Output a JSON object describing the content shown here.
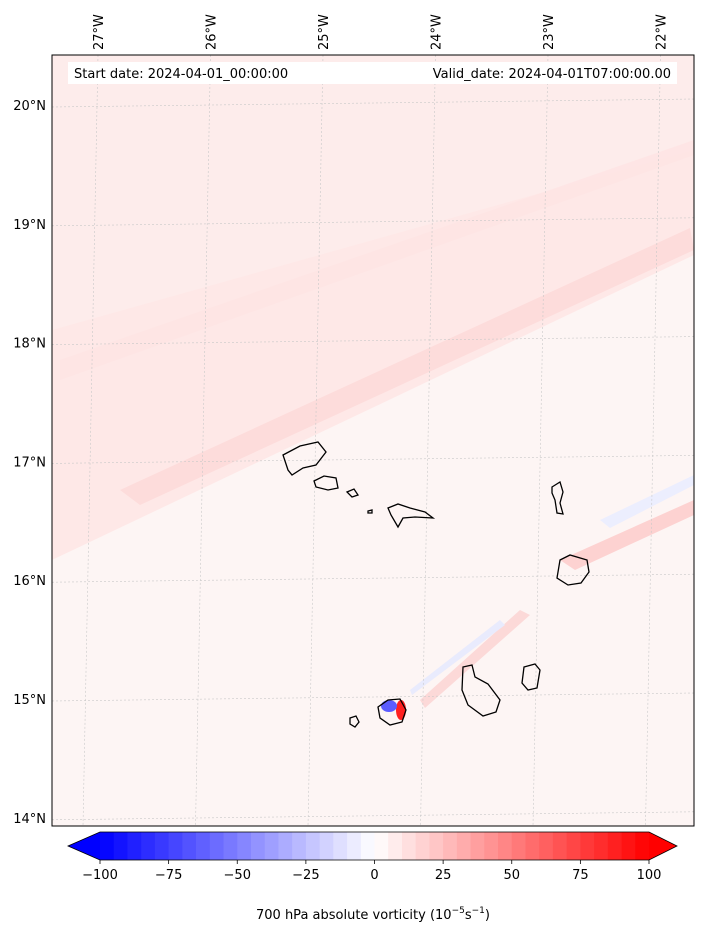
{
  "map": {
    "start_label": "Start date: 2024-04-01_00:00:00",
    "valid_label": "Valid_date: 2024-04-01T07:00:00.00",
    "lon_ticks": [
      "27°W",
      "26°W",
      "25°W",
      "24°W",
      "23°W",
      "22°W"
    ],
    "lat_ticks": [
      "20°N",
      "19°N",
      "18°N",
      "17°N",
      "16°N",
      "15°N",
      "14°N"
    ],
    "lon_values": [
      -27,
      -26,
      -25,
      -24,
      -23,
      -22
    ],
    "lat_values": [
      20,
      19,
      18,
      17,
      16,
      15,
      14
    ],
    "islands": [
      "Santo Antão",
      "São Vicente",
      "Santa Luzia",
      "São Nicolau",
      "Sal",
      "Boa Vista",
      "Maio",
      "Santiago",
      "Fogo",
      "Brava"
    ]
  },
  "colorbar": {
    "label": "700 hPa absolute vorticity (10",
    "label_exp": "−5",
    "label_unit": "s",
    "label_unit_exp": "−1",
    "label_close": ")",
    "tick_labels": [
      "−100",
      "−75",
      "−50",
      "−25",
      "0",
      "25",
      "50",
      "75",
      "100"
    ],
    "tick_values": [
      -100,
      -75,
      -50,
      -25,
      0,
      25,
      50,
      75,
      100
    ],
    "min_color": "#0000ff",
    "mid_color": "#ffffff",
    "max_color": "#ff0000",
    "extend": "both"
  }
}
